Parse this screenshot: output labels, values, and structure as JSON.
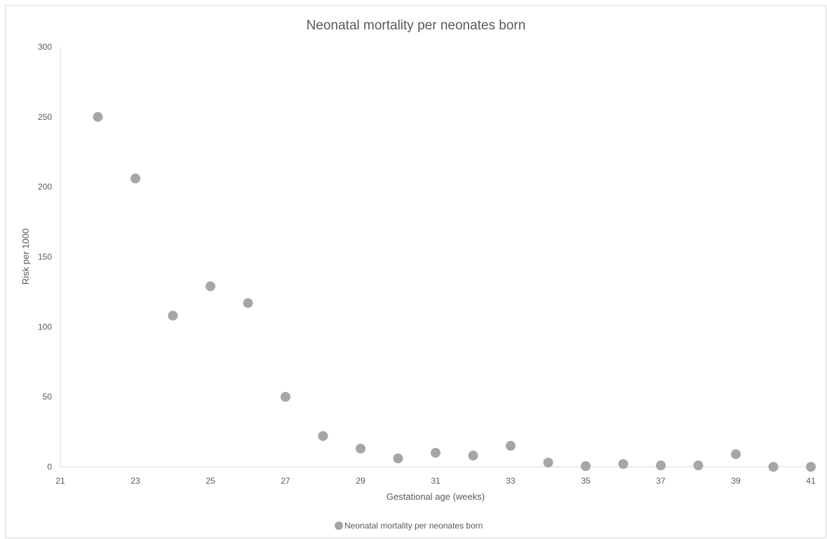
{
  "chart_data": {
    "type": "scatter",
    "title": "Neonatal mortality per neonates born",
    "xlabel": "Gestational age (weeks)",
    "ylabel": "Risk per 1000",
    "xlim": [
      21,
      41
    ],
    "ylim": [
      0,
      300
    ],
    "x_ticks": [
      21,
      23,
      25,
      27,
      29,
      31,
      33,
      35,
      37,
      39,
      41
    ],
    "y_ticks": [
      0,
      50,
      100,
      150,
      200,
      250,
      300
    ],
    "grid": false,
    "legend_position": "bottom",
    "marker_color": "#a6a6a6",
    "series": [
      {
        "name": "Neonatal mortality per neonates born",
        "points": [
          {
            "x": 22,
            "y": 250
          },
          {
            "x": 23,
            "y": 206
          },
          {
            "x": 24,
            "y": 108
          },
          {
            "x": 25,
            "y": 129
          },
          {
            "x": 26,
            "y": 117
          },
          {
            "x": 27,
            "y": 50
          },
          {
            "x": 28,
            "y": 22
          },
          {
            "x": 29,
            "y": 13
          },
          {
            "x": 30,
            "y": 6
          },
          {
            "x": 31,
            "y": 10
          },
          {
            "x": 32,
            "y": 8
          },
          {
            "x": 33,
            "y": 15
          },
          {
            "x": 34,
            "y": 3
          },
          {
            "x": 35,
            "y": 0.5
          },
          {
            "x": 36,
            "y": 2
          },
          {
            "x": 37,
            "y": 1
          },
          {
            "x": 38,
            "y": 1
          },
          {
            "x": 39,
            "y": 9
          },
          {
            "x": 40,
            "y": 0
          },
          {
            "x": 41,
            "y": 0
          }
        ]
      }
    ]
  }
}
